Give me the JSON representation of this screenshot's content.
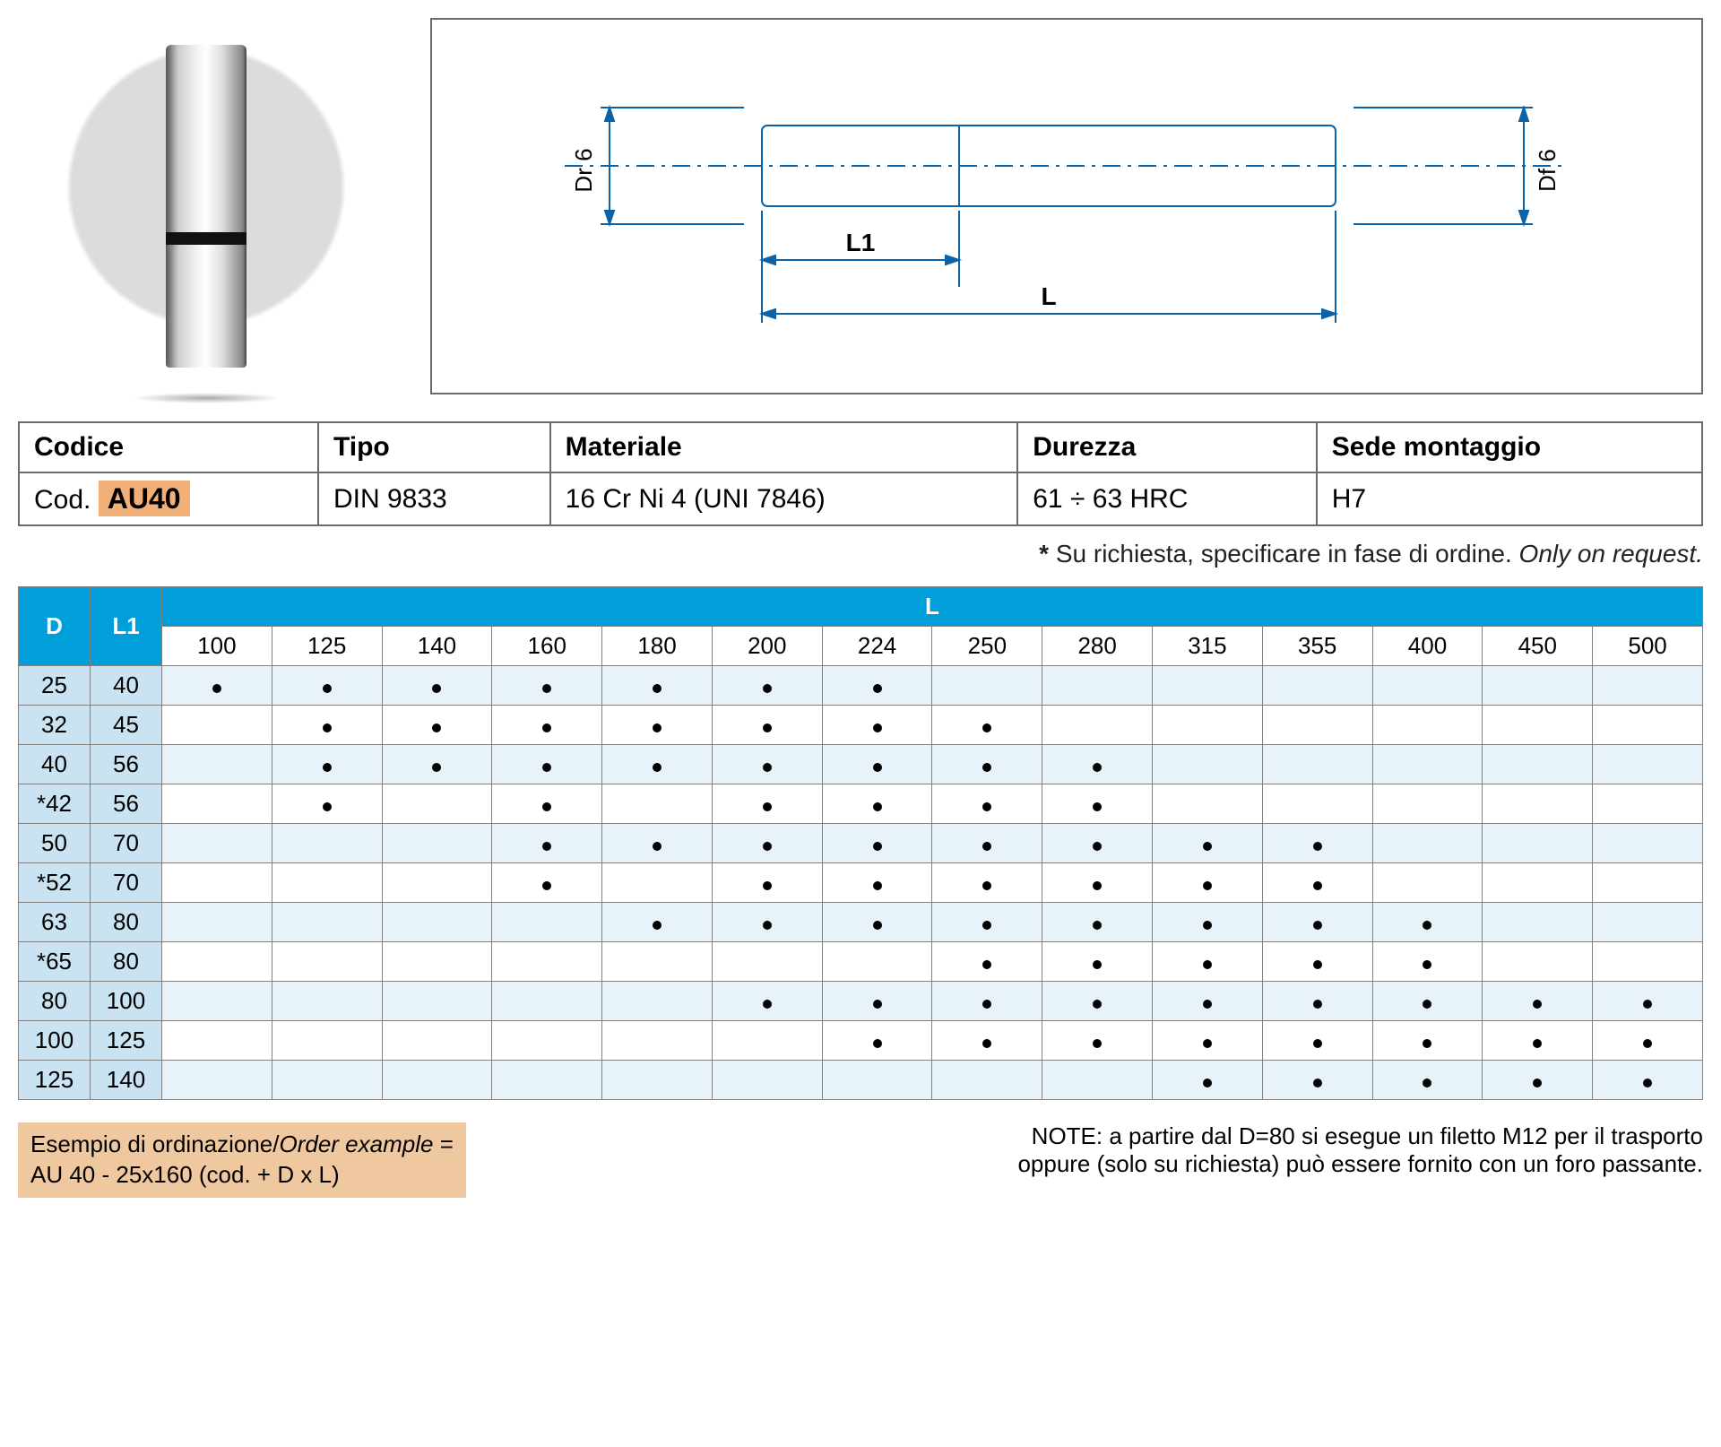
{
  "diagram": {
    "left_label": "Dr 6",
    "right_label": "Df 6",
    "l1_label": "L1",
    "l_label": "L",
    "stroke": "#0a62a9",
    "stroke_width": 2
  },
  "spec_headers": {
    "codice": "Codice",
    "tipo": "Tipo",
    "materiale": "Materiale",
    "durezza": "Durezza",
    "sede": "Sede montaggio"
  },
  "spec_values": {
    "codice_prefix": "Cod.",
    "codice_badge": "AU40",
    "tipo": "DIN 9833",
    "materiale": "16 Cr Ni 4 (UNI 7846)",
    "durezza": "61 ÷ 63 HRC",
    "sede": "H7"
  },
  "request_note": {
    "star": "*",
    "text": " Su richiesta, specificare in fase di ordine. ",
    "italic": "Only on request."
  },
  "matrix": {
    "d_header": "D",
    "l1_header": "L1",
    "l_header": "L",
    "l_columns": [
      "100",
      "125",
      "140",
      "160",
      "180",
      "200",
      "224",
      "250",
      "280",
      "315",
      "355",
      "400",
      "450",
      "500"
    ],
    "rows": [
      {
        "d": "25",
        "l1": "40",
        "marks": [
          1,
          1,
          1,
          1,
          1,
          1,
          1,
          0,
          0,
          0,
          0,
          0,
          0,
          0
        ]
      },
      {
        "d": "32",
        "l1": "45",
        "marks": [
          0,
          1,
          1,
          1,
          1,
          1,
          1,
          1,
          0,
          0,
          0,
          0,
          0,
          0
        ]
      },
      {
        "d": "40",
        "l1": "56",
        "marks": [
          0,
          1,
          1,
          1,
          1,
          1,
          1,
          1,
          1,
          0,
          0,
          0,
          0,
          0
        ]
      },
      {
        "d": "*42",
        "l1": "56",
        "marks": [
          0,
          1,
          0,
          1,
          0,
          1,
          1,
          1,
          1,
          0,
          0,
          0,
          0,
          0
        ]
      },
      {
        "d": "50",
        "l1": "70",
        "marks": [
          0,
          0,
          0,
          1,
          1,
          1,
          1,
          1,
          1,
          1,
          1,
          0,
          0,
          0
        ]
      },
      {
        "d": "*52",
        "l1": "70",
        "marks": [
          0,
          0,
          0,
          1,
          0,
          1,
          1,
          1,
          1,
          1,
          1,
          0,
          0,
          0
        ]
      },
      {
        "d": "63",
        "l1": "80",
        "marks": [
          0,
          0,
          0,
          0,
          1,
          1,
          1,
          1,
          1,
          1,
          1,
          1,
          0,
          0
        ]
      },
      {
        "d": "*65",
        "l1": "80",
        "marks": [
          0,
          0,
          0,
          0,
          0,
          0,
          0,
          1,
          1,
          1,
          1,
          1,
          0,
          0
        ]
      },
      {
        "d": "80",
        "l1": "100",
        "marks": [
          0,
          0,
          0,
          0,
          0,
          1,
          1,
          1,
          1,
          1,
          1,
          1,
          1,
          1
        ]
      },
      {
        "d": "100",
        "l1": "125",
        "marks": [
          0,
          0,
          0,
          0,
          0,
          0,
          1,
          1,
          1,
          1,
          1,
          1,
          1,
          1
        ]
      },
      {
        "d": "125",
        "l1": "140",
        "marks": [
          0,
          0,
          0,
          0,
          0,
          0,
          0,
          0,
          0,
          1,
          1,
          1,
          1,
          1
        ]
      }
    ]
  },
  "order_example": {
    "line1a": "Esempio di ordinazione/",
    "line1b": "Order example",
    "line1c": " =",
    "line2": "AU 40 - 25x160 (cod. + D x L)"
  },
  "footer_note": {
    "line1": "NOTE: a partire dal D=80 si esegue un filetto M12 per il trasporto",
    "line2": "oppure (solo su richiesta) può essere fornito con un foro passante."
  }
}
